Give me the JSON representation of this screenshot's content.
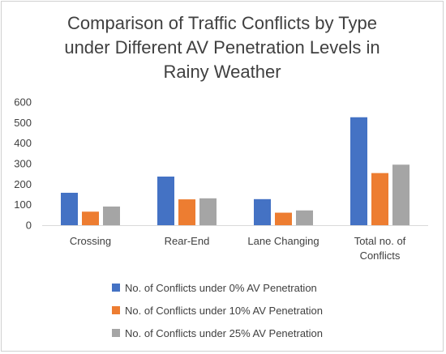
{
  "chart_data": {
    "type": "bar",
    "title_lines": [
      "Comparison of Traffic Conflicts by Type",
      "under Different AV Penetration Levels in",
      "Rainy Weather"
    ],
    "categories": [
      [
        "Crossing"
      ],
      [
        "Rear-End"
      ],
      [
        "Lane Changing"
      ],
      [
        "Total no. of",
        "Conflicts"
      ]
    ],
    "series": [
      {
        "name": "No. of Conflicts under 0% AV Penetration",
        "color": "#4472C4",
        "values": [
          158,
          237,
          127,
          526
        ]
      },
      {
        "name": "No. of Conflicts under 10% AV Penetration",
        "color": "#ED7D31",
        "values": [
          66,
          126,
          61,
          254
        ]
      },
      {
        "name": "No. of Conflicts under 25% AV Penetration",
        "color": "#A5A5A5",
        "values": [
          91,
          131,
          72,
          295
        ]
      }
    ],
    "yticks": [
      "0",
      "100",
      "200",
      "300",
      "400",
      "500",
      "600"
    ],
    "ylim": [
      0,
      600
    ],
    "xlabel": "",
    "ylabel": "",
    "grid": false,
    "legend_position": "bottom"
  }
}
